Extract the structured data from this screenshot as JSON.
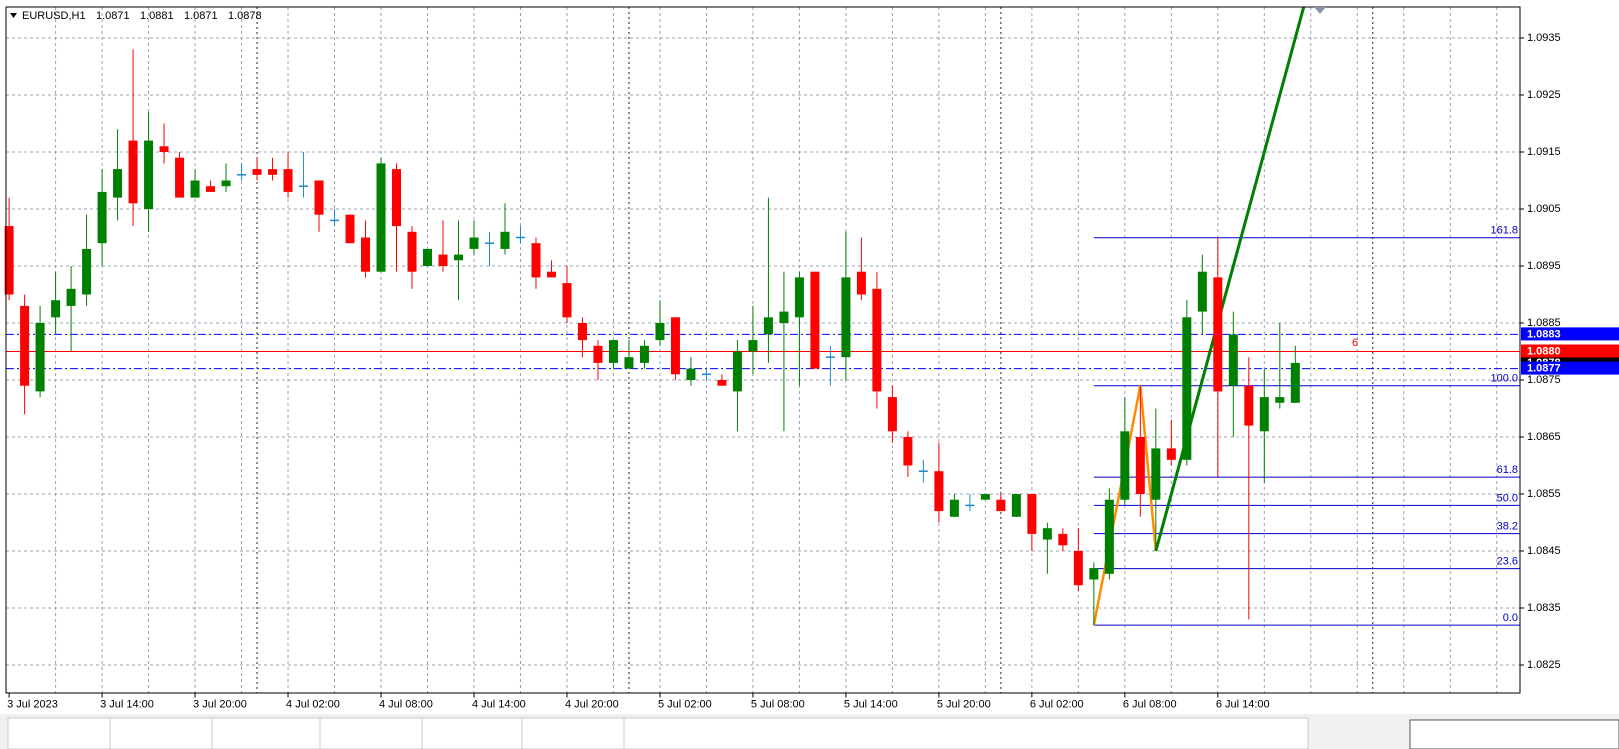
{
  "chart_data": {
    "type": "candlestick",
    "symbol": "EURUSD,H1",
    "ohlc": [
      1.0871,
      1.0881,
      1.0871,
      1.0878
    ],
    "bull_color": "#008000",
    "bear_color": "#ff0000",
    "doji_color": "#1e88c8",
    "x": [
      0,
      1,
      2,
      3,
      4,
      5,
      6,
      7,
      8,
      9,
      10,
      11,
      12,
      13,
      14,
      15,
      16,
      17,
      18,
      19,
      20,
      21,
      22,
      23,
      24,
      25,
      26,
      27,
      28,
      29,
      30,
      31,
      32,
      33,
      34,
      35,
      36,
      37,
      38,
      39,
      40,
      41,
      42,
      43,
      44,
      45,
      46,
      47,
      48,
      49,
      50,
      51,
      52,
      53,
      54,
      55,
      56,
      57,
      58,
      59,
      60,
      61,
      62,
      63,
      64,
      65,
      66,
      67,
      68,
      69,
      70,
      71,
      72,
      73,
      74,
      75,
      76,
      77,
      78,
      79,
      80,
      81,
      82,
      83
    ],
    "open": [
      1.0902,
      1.0888,
      1.0873,
      1.0886,
      1.0888,
      1.089,
      1.0899,
      1.0907,
      1.0917,
      1.0905,
      1.0916,
      1.0914,
      1.0907,
      1.0909,
      1.0909,
      1.0911,
      1.0912,
      1.0912,
      1.0912,
      1.0909,
      1.091,
      1.0903,
      1.0904,
      1.09,
      1.0894,
      1.0912,
      1.0901,
      1.0895,
      1.0897,
      1.0896,
      1.0898,
      1.0899,
      1.0898,
      1.09,
      1.0899,
      1.0894,
      1.0892,
      1.0885,
      1.0881,
      1.0878,
      1.0877,
      1.0878,
      1.0882,
      1.0886,
      1.0875,
      1.0876,
      1.0875,
      1.0873,
      1.088,
      1.0883,
      1.0885,
      1.0886,
      1.0894,
      1.0879,
      1.0879,
      1.0894,
      1.0891,
      1.0872,
      1.0865,
      1.0859,
      1.0859,
      1.0851,
      1.0853,
      1.0854,
      1.0854,
      1.0851,
      1.0855,
      1.0847,
      1.0848,
      1.0845,
      1.084,
      1.0841,
      1.0854,
      1.0865,
      1.0854,
      1.0863,
      1.0861,
      1.0887,
      1.0893,
      1.0874,
      1.0874,
      1.0866,
      1.0871,
      1.0871
    ],
    "high": [
      1.0907,
      1.089,
      1.0888,
      1.0894,
      1.0895,
      1.0904,
      1.0912,
      1.0919,
      1.0933,
      1.0922,
      1.092,
      1.0915,
      1.0912,
      1.091,
      1.0913,
      1.0913,
      1.0914,
      1.0914,
      1.0915,
      1.0915,
      1.091,
      1.0905,
      1.0904,
      1.0903,
      1.0914,
      1.0913,
      1.0902,
      1.0898,
      1.0903,
      1.0903,
      1.0903,
      1.0901,
      1.0906,
      1.0902,
      1.09,
      1.0896,
      1.0895,
      1.0886,
      1.0882,
      1.0882,
      1.0882,
      1.0882,
      1.0889,
      1.0886,
      1.0879,
      1.0877,
      1.0876,
      1.0882,
      1.0888,
      1.0907,
      1.0894,
      1.0894,
      1.0894,
      1.0881,
      1.0901,
      1.09,
      1.0894,
      1.0874,
      1.0866,
      1.0861,
      1.0864,
      1.0855,
      1.0855,
      1.0855,
      1.0855,
      1.0855,
      1.0855,
      1.085,
      1.0849,
      1.0849,
      1.0843,
      1.0856,
      1.0872,
      1.0874,
      1.087,
      1.0868,
      1.0889,
      1.0897,
      1.09,
      1.0887,
      1.0879,
      1.0877,
      1.0885,
      1.0881
    ],
    "low": [
      1.0889,
      1.0869,
      1.0872,
      1.0883,
      1.088,
      1.0888,
      1.0895,
      1.0903,
      1.0902,
      1.0901,
      1.0913,
      1.0907,
      1.0907,
      1.0908,
      1.0908,
      1.091,
      1.091,
      1.091,
      1.0907,
      1.0907,
      1.0901,
      1.0902,
      1.0899,
      1.0893,
      1.0894,
      1.0894,
      1.0891,
      1.0895,
      1.0894,
      1.0889,
      1.0897,
      1.0895,
      1.0897,
      1.0899,
      1.0891,
      1.0893,
      1.0885,
      1.0879,
      1.0875,
      1.0877,
      1.0877,
      1.0877,
      1.0881,
      1.0875,
      1.0874,
      1.0875,
      1.0874,
      1.0866,
      1.0876,
      1.0878,
      1.0866,
      1.0874,
      1.0877,
      1.0874,
      1.0875,
      1.0889,
      1.087,
      1.0864,
      1.0858,
      1.0857,
      1.085,
      1.0851,
      1.0852,
      1.0854,
      1.0852,
      1.0851,
      1.0845,
      1.0841,
      1.0845,
      1.0838,
      1.0832,
      1.084,
      1.0853,
      1.0851,
      1.0845,
      1.086,
      1.086,
      1.0883,
      1.0858,
      1.0865,
      1.0833,
      1.0857,
      1.087,
      1.0871
    ],
    "close": [
      1.089,
      1.0874,
      1.0885,
      1.0889,
      1.0891,
      1.0898,
      1.0908,
      1.0912,
      1.0906,
      1.0917,
      1.0915,
      1.0907,
      1.091,
      1.0908,
      1.091,
      1.0911,
      1.0911,
      1.0911,
      1.0908,
      1.0909,
      1.0904,
      1.0903,
      1.0899,
      1.0894,
      1.0913,
      1.0902,
      1.0894,
      1.0898,
      1.0895,
      1.0897,
      1.09,
      1.0899,
      1.0901,
      1.09,
      1.0893,
      1.0893,
      1.0886,
      1.0882,
      1.0878,
      1.0882,
      1.0879,
      1.0881,
      1.0885,
      1.0876,
      1.0877,
      1.0876,
      1.0874,
      1.088,
      1.0882,
      1.0886,
      1.0887,
      1.0893,
      1.0877,
      1.0879,
      1.0893,
      1.089,
      1.0873,
      1.0866,
      1.086,
      1.0859,
      1.0852,
      1.0854,
      1.0853,
      1.0855,
      1.0852,
      1.0855,
      1.0848,
      1.0849,
      1.0846,
      1.0839,
      1.0842,
      1.0854,
      1.0866,
      1.0855,
      1.0863,
      1.0861,
      1.0886,
      1.0894,
      1.0873,
      1.0883,
      1.0867,
      1.0872,
      1.0872,
      1.0878
    ],
    "xlim": [
      -0.2,
      97.5
    ],
    "xticks": [
      {
        "value": 0,
        "label": "3 Jul 2023"
      },
      {
        "value": 6,
        "label": "3 Jul 14:00"
      },
      {
        "value": 12,
        "label": "3 Jul 20:00"
      },
      {
        "value": 18,
        "label": "4 Jul 02:00"
      },
      {
        "value": 24,
        "label": "4 Jul 08:00"
      },
      {
        "value": 30,
        "label": "4 Jul 14:00"
      },
      {
        "value": 36,
        "label": "4 Jul 20:00"
      },
      {
        "value": 42,
        "label": "5 Jul 02:00"
      },
      {
        "value": 48,
        "label": "5 Jul 08:00"
      },
      {
        "value": 54,
        "label": "5 Jul 14:00"
      },
      {
        "value": 60,
        "label": "5 Jul 20:00"
      },
      {
        "value": 66,
        "label": "6 Jul 02:00"
      },
      {
        "value": 72,
        "label": "6 Jul 08:00"
      },
      {
        "value": 78,
        "label": "6 Jul 14:00"
      }
    ],
    "xgrid": [
      3,
      6,
      9,
      12,
      15,
      18,
      21,
      24,
      27,
      30,
      33,
      36,
      39,
      42,
      45,
      48,
      51,
      54,
      57,
      60,
      63,
      66,
      69,
      72,
      75,
      78,
      81,
      84,
      87,
      90,
      93,
      96
    ],
    "day_separators": [
      16,
      40,
      64,
      88
    ],
    "ylim": [
      1.082,
      1.094
    ],
    "yticks": [
      1.0825,
      1.0835,
      1.0845,
      1.0855,
      1.0865,
      1.0875,
      1.0885,
      1.0895,
      1.0905,
      1.0915,
      1.0925,
      1.0935
    ],
    "grid": true,
    "hlines": [
      {
        "value": 1.0878,
        "color": "#000000",
        "style": "none"
      },
      {
        "value": 1.0883,
        "color": "#0000ff",
        "style": "dashdot"
      },
      {
        "value": 1.088,
        "label": "1.0880",
        "color": "#ff0000",
        "style": "solid"
      },
      {
        "value": 1.0877,
        "color": "#0000ff",
        "style": "dashdot"
      }
    ],
    "fib": {
      "color": "#0000cd",
      "start": 70,
      "low": 1.0832,
      "high": 1.0874,
      "levels": [
        {
          "value": 0,
          "label": "0.0"
        },
        23.6,
        38.2,
        {
          "value": 50,
          "label": "50.0"
        },
        61.8,
        {
          "value": 100,
          "label": "100.0"
        },
        161.8
      ]
    },
    "zigzag": {
      "color": "#ff8c00",
      "x": [
        70,
        73,
        74
      ],
      "values": [
        1.0832,
        1.0874,
        1.0845
      ]
    },
    "trendline": {
      "color": "#008000",
      "x": [
        74,
        78
      ],
      "values": [
        1.0845,
        1.0885
      ]
    },
    "annotation": {
      "text": "6",
      "color": "#ff0000"
    }
  }
}
